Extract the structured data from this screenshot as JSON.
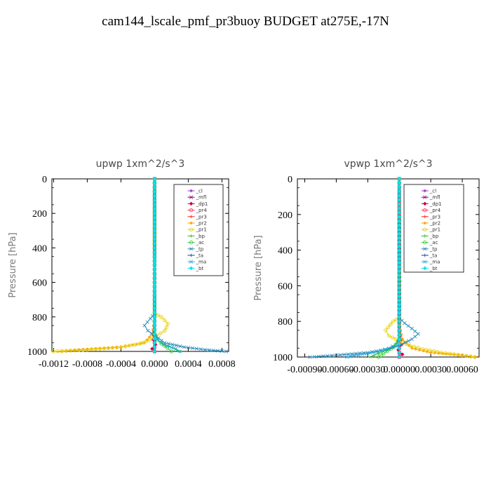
{
  "page": {
    "title": "cam144_lscale_pmf_pr3buoy  BUDGET at275E,-17N"
  },
  "legend_colors": {
    "_cl": "#9933cc",
    "_mfl": "#800080",
    "_dp1": "#cc0044",
    "_pr4": "#ff3366",
    "_pr3": "#ff2222",
    "_pr2": "#ff9900",
    "_pr1": "#e8d000",
    "_bp": "#22bb22",
    "_ac": "#33cc33",
    "_tp": "#2288bb",
    "_ta": "#223399",
    "_ma": "#22aadd",
    "_bt": "#00e5ee"
  },
  "chart_data": [
    {
      "type": "line",
      "title": "upwp   1xm^2/s^3",
      "xlabel": "",
      "ylabel": "Pressure  [hPa]",
      "xlim": [
        -0.00122,
        0.00088
      ],
      "ylim": [
        1000,
        0
      ],
      "xticks": [
        -0.0012,
        -0.0008,
        -0.0004,
        0.0,
        0.0004,
        0.0008
      ],
      "xtick_labels": [
        "-0.0012",
        "-0.0008",
        "-0.0004",
        "0.0000",
        "0.0004",
        "0.0008"
      ],
      "yticks": [
        0,
        200,
        400,
        600,
        800,
        1000
      ],
      "ytick_labels": [
        "0",
        "200",
        "400",
        "600",
        "800",
        "1000"
      ],
      "grid": false,
      "legend_position": "top-right",
      "series": [
        {
          "name": "_cl",
          "x": [
            0,
            0,
            0,
            0,
            0,
            0,
            0,
            0,
            0,
            0,
            0
          ],
          "y": [
            0,
            100,
            200,
            300,
            400,
            500,
            600,
            700,
            800,
            900,
            1000
          ]
        },
        {
          "name": "_mfl",
          "x": [
            0,
            0,
            0,
            0,
            0,
            0,
            0,
            0,
            0,
            0,
            0
          ],
          "y": [
            0,
            100,
            200,
            300,
            400,
            500,
            600,
            700,
            800,
            900,
            1000
          ]
        },
        {
          "name": "_dp1",
          "x": [
            0,
            0,
            0,
            0,
            0,
            -1e-05,
            -2e-05,
            1e-05,
            -3e-05,
            0
          ],
          "y": [
            0,
            200,
            400,
            600,
            800,
            880,
            930,
            960,
            985,
            1000
          ]
        },
        {
          "name": "_pr4",
          "x": [
            0,
            0,
            0,
            0,
            0
          ],
          "y": [
            0,
            300,
            600,
            900,
            1000
          ]
        },
        {
          "name": "_pr3",
          "x": [
            0,
            0,
            0,
            0,
            0
          ],
          "y": [
            0,
            300,
            600,
            900,
            1000
          ]
        },
        {
          "name": "_pr2",
          "x": [
            0,
            0,
            0,
            -3e-05,
            -0.00012,
            -0.0004,
            -0.0009,
            -0.0011
          ],
          "y": [
            0,
            500,
            820,
            900,
            950,
            975,
            990,
            1000
          ]
        },
        {
          "name": "_pr1",
          "x": [
            0,
            0,
            0,
            8e-05,
            0.00016,
            0.00012,
            2e-05,
            -6e-05,
            -0.00018,
            -0.0004,
            -0.0008,
            -0.0012
          ],
          "y": [
            0,
            500,
            780,
            800,
            840,
            880,
            910,
            935,
            955,
            975,
            990,
            1000
          ]
        },
        {
          "name": "_bp",
          "x": [
            0,
            0,
            0,
            2e-05,
            5e-05,
            0.00012,
            0.00022,
            0.0003
          ],
          "y": [
            0,
            500,
            880,
            910,
            940,
            960,
            980,
            1000
          ]
        },
        {
          "name": "_ac",
          "x": [
            0,
            0,
            0,
            3e-05,
            8e-05,
            0.00015,
            0.0002
          ],
          "y": [
            0,
            500,
            900,
            930,
            955,
            980,
            1000
          ]
        },
        {
          "name": "_tp",
          "x": [
            0,
            0,
            0,
            -5e-05,
            -0.00012,
            -8e-05,
            1e-05,
            0.00012,
            0.00035,
            0.0006,
            0.00085
          ],
          "y": [
            0,
            500,
            780,
            810,
            850,
            880,
            910,
            950,
            975,
            990,
            1000
          ]
        },
        {
          "name": "_ta",
          "x": [
            0,
            0,
            0,
            0,
            0
          ],
          "y": [
            0,
            300,
            600,
            900,
            1000
          ]
        },
        {
          "name": "_ma",
          "x": [
            0,
            0,
            0,
            3e-05,
            8e-05,
            0.00015,
            0.00025,
            0.0003
          ],
          "y": [
            0,
            500,
            900,
            930,
            950,
            970,
            985,
            1000
          ]
        },
        {
          "name": "_bt",
          "x": [
            0,
            0,
            0,
            0
          ],
          "y": [
            0,
            400,
            800,
            1000
          ]
        }
      ]
    },
    {
      "type": "line",
      "title": "vpwp   1xm^2/s^3",
      "xlabel": "",
      "ylabel": "Pressure  [hPa]",
      "xlim": [
        -0.00097,
        0.00076
      ],
      "ylim": [
        1000,
        0
      ],
      "xticks": [
        -0.0009,
        -0.0006,
        -0.0003,
        0.0,
        0.0003,
        0.0006
      ],
      "xtick_labels": [
        "-0.00090",
        "-0.00060",
        "-0.00030",
        "0.00000",
        "0.00030",
        "0.00060"
      ],
      "yticks": [
        0,
        200,
        400,
        600,
        800,
        1000
      ],
      "ytick_labels": [
        "0",
        "200",
        "400",
        "600",
        "800",
        "1000"
      ],
      "grid": false,
      "legend_position": "top-right",
      "series": [
        {
          "name": "_cl",
          "x": [
            0,
            0,
            0,
            0,
            0,
            0,
            0,
            0,
            0,
            0,
            0
          ],
          "y": [
            0,
            100,
            200,
            300,
            400,
            500,
            600,
            700,
            800,
            900,
            1000
          ]
        },
        {
          "name": "_mfl",
          "x": [
            0,
            0,
            0,
            0,
            0,
            0,
            0,
            0,
            0,
            0,
            0
          ],
          "y": [
            0,
            100,
            200,
            300,
            400,
            500,
            600,
            700,
            800,
            900,
            1000
          ]
        },
        {
          "name": "_dp1",
          "x": [
            0,
            0,
            0,
            0,
            0,
            1e-05,
            2e-05,
            -1e-05,
            3e-05,
            0
          ],
          "y": [
            0,
            200,
            400,
            600,
            800,
            880,
            930,
            960,
            985,
            1000
          ]
        },
        {
          "name": "_pr4",
          "x": [
            0,
            0,
            0,
            0,
            0
          ],
          "y": [
            0,
            300,
            600,
            900,
            1000
          ]
        },
        {
          "name": "_pr3",
          "x": [
            0,
            0,
            0,
            0,
            0
          ],
          "y": [
            0,
            300,
            600,
            900,
            1000
          ]
        },
        {
          "name": "_pr2",
          "x": [
            0,
            0,
            0,
            3e-05,
            0.00012,
            0.0003,
            0.0006,
            0.00072
          ],
          "y": [
            0,
            500,
            820,
            900,
            950,
            975,
            990,
            1000
          ]
        },
        {
          "name": "_pr1",
          "x": [
            0,
            0,
            0,
            -6e-05,
            -0.00013,
            -0.0001,
            0,
            0.0001,
            0.00022,
            0.0004,
            0.0006,
            0.00072
          ],
          "y": [
            0,
            500,
            780,
            800,
            850,
            880,
            910,
            935,
            955,
            975,
            990,
            1000
          ]
        },
        {
          "name": "_bp",
          "x": [
            0,
            0,
            0,
            -2e-05,
            -5e-05,
            -0.00012,
            -0.0002,
            -0.00028
          ],
          "y": [
            0,
            500,
            880,
            910,
            940,
            960,
            980,
            1000
          ]
        },
        {
          "name": "_ac",
          "x": [
            0,
            0,
            0,
            -3e-05,
            -8e-05,
            -0.00015,
            -0.0002
          ],
          "y": [
            0,
            500,
            900,
            930,
            955,
            980,
            1000
          ]
        },
        {
          "name": "_tp",
          "x": [
            0,
            0,
            0,
            5e-05,
            0.00012,
            0.00018,
            0.00012,
            2e-05,
            -0.0001,
            -0.0003,
            -0.0006,
            -0.00085
          ],
          "y": [
            0,
            500,
            780,
            810,
            840,
            870,
            900,
            930,
            955,
            975,
            990,
            1000
          ]
        },
        {
          "name": "_ta",
          "x": [
            0,
            0,
            0,
            0,
            0
          ],
          "y": [
            0,
            300,
            600,
            900,
            1000
          ]
        },
        {
          "name": "_ma",
          "x": [
            0,
            0,
            0,
            -3e-05,
            -0.0001,
            -0.0002,
            -0.00035,
            -0.0005
          ],
          "y": [
            0,
            500,
            900,
            930,
            950,
            970,
            985,
            1000
          ]
        },
        {
          "name": "_bt",
          "x": [
            0,
            0,
            0,
            0
          ],
          "y": [
            0,
            400,
            800,
            1000
          ]
        }
      ]
    }
  ]
}
